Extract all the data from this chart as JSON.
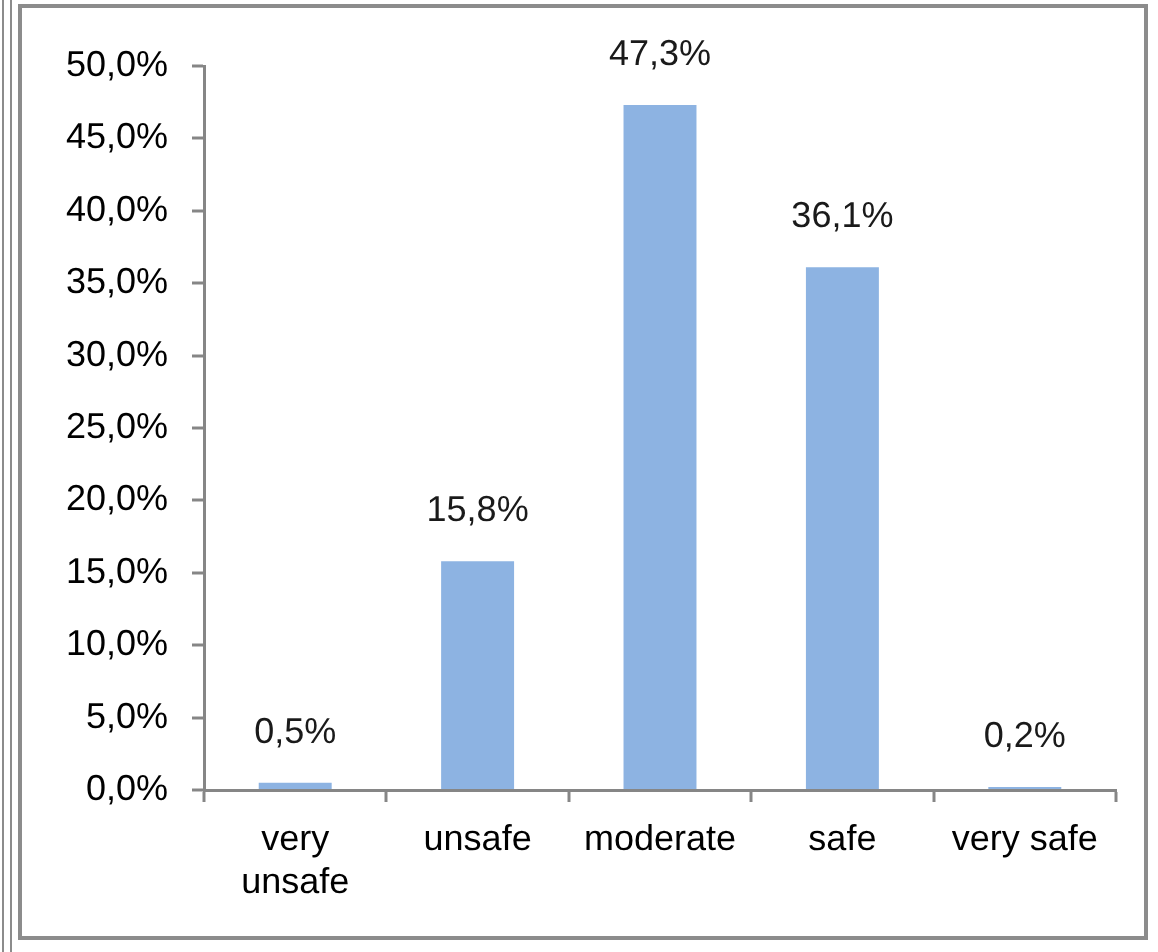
{
  "chart_data": {
    "type": "bar",
    "categories": [
      "very unsafe",
      "unsafe",
      "moderate",
      "safe",
      "very safe"
    ],
    "values": [
      0.5,
      15.8,
      47.3,
      36.1,
      0.2
    ],
    "color": "#8db3e2",
    "value_labels": [
      "0,5%",
      "15,8%",
      "47,3%",
      "36,1%",
      "0,2%"
    ],
    "ylim": [
      0,
      50
    ],
    "yticks": [
      {
        "value": 0,
        "label": "0,0%"
      },
      {
        "value": 5,
        "label": "5,0%"
      },
      {
        "value": 10,
        "label": "10,0%"
      },
      {
        "value": 15,
        "label": "15,0%"
      },
      {
        "value": 20,
        "label": "20,0%"
      },
      {
        "value": 25,
        "label": "25,0%"
      },
      {
        "value": 30,
        "label": "30,0%"
      },
      {
        "value": 35,
        "label": "35,0%"
      },
      {
        "value": 40,
        "label": "40,0%"
      },
      {
        "value": 45,
        "label": "45,0%"
      },
      {
        "value": 50,
        "label": "50,0%"
      }
    ]
  }
}
